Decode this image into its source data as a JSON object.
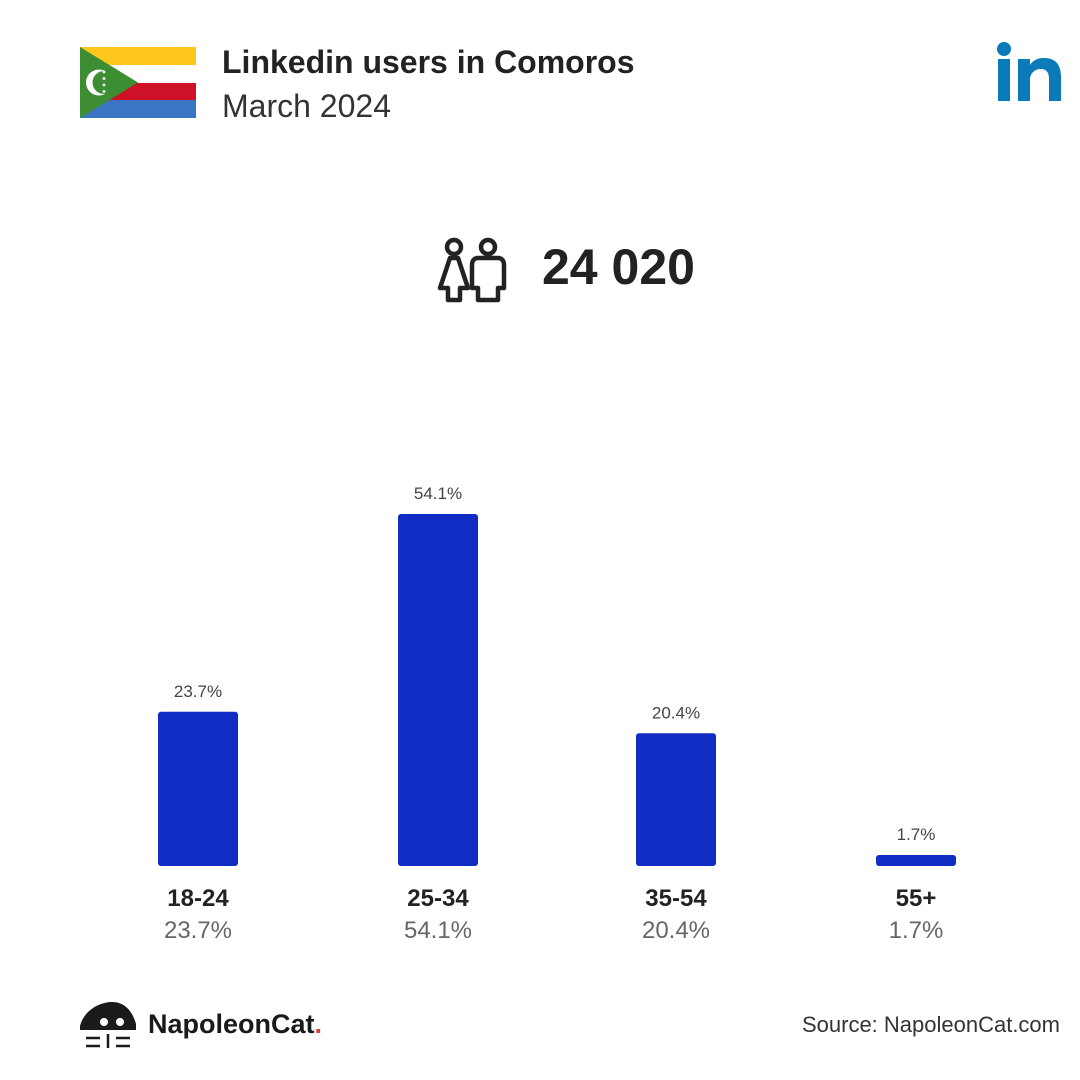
{
  "header": {
    "title": "Linkedin users in Comoros",
    "subtitle": "March 2024"
  },
  "summary": {
    "total_users": "24 020"
  },
  "colors": {
    "bar": "#102cc2",
    "linkedin": "#0a7bb8",
    "text_dark": "#222222",
    "text_muted": "#666666"
  },
  "icons": {
    "flag": "comoros-flag",
    "logo": "linkedin-logo",
    "users": "users-icon",
    "brand": "napoleoncat-logo"
  },
  "chart_data": {
    "type": "bar",
    "categories": [
      "18-24",
      "25-34",
      "35-54",
      "55+"
    ],
    "values": [
      23.7,
      54.1,
      20.4,
      1.7
    ],
    "data_labels": [
      "23.7%",
      "54.1%",
      "20.4%",
      "1.7%"
    ],
    "ylim": [
      0,
      54.1
    ],
    "grid": false,
    "title": "",
    "xlabel": "",
    "ylabel": ""
  },
  "footer": {
    "brand_name": "NapoleonCat",
    "brand_dot": ".",
    "source": "Source: NapoleonCat.com"
  }
}
